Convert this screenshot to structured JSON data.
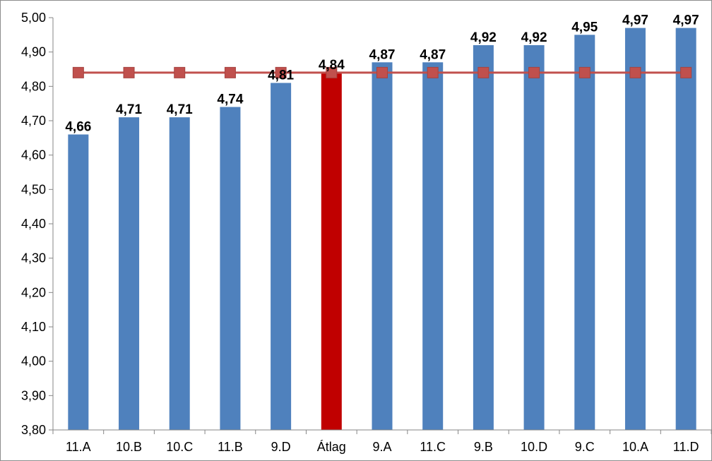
{
  "chart_data": {
    "type": "bar",
    "categories": [
      "11.A",
      "10.B",
      "10.C",
      "11.B",
      "9.D",
      "Átlag",
      "9.A",
      "11.C",
      "9.B",
      "10.D",
      "9.C",
      "10.A",
      "11.D"
    ],
    "values": [
      4.66,
      4.71,
      4.71,
      4.74,
      4.81,
      4.84,
      4.87,
      4.87,
      4.92,
      4.92,
      4.95,
      4.97,
      4.97
    ],
    "data_labels": [
      "4,66",
      "4,71",
      "4,71",
      "4,74",
      "4,81",
      "4,84",
      "4,87",
      "4,87",
      "4,92",
      "4,92",
      "4,95",
      "4,97",
      "4,97"
    ],
    "highlight_category": "Átlag",
    "average_line": {
      "value": 4.84
    },
    "ylim": [
      3.8,
      5.0
    ],
    "yticks": [
      3.8,
      3.9,
      4.0,
      4.1,
      4.2,
      4.3,
      4.4,
      4.5,
      4.6,
      4.7,
      4.8,
      4.9,
      5.0
    ],
    "ytick_labels": [
      "3,80",
      "3,90",
      "4,00",
      "4,10",
      "4,20",
      "4,30",
      "4,40",
      "4,50",
      "4,60",
      "4,70",
      "4,80",
      "4,90",
      "5,00"
    ],
    "grid": false,
    "legend": "none",
    "title": "",
    "xlabel": "",
    "ylabel": "",
    "colors": {
      "bar": "#4f81bd",
      "highlight_bar": "#c00000",
      "average_line": "#c0504d",
      "axis": "#868686"
    }
  }
}
